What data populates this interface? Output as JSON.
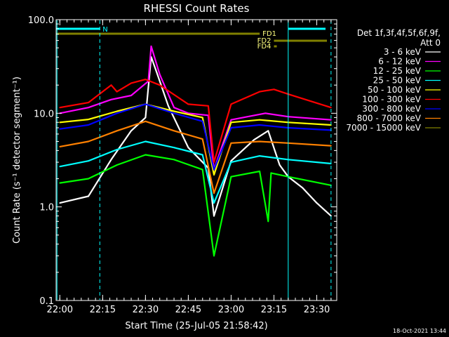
{
  "chart_data": {
    "type": "line",
    "title": "RHESSI Count Rates",
    "xlabel": "Start Time (25-Jul-05 21:58:42)",
    "ylabel": "Count Rate (s⁻¹ detector segment⁻¹)",
    "timestamp": "18-Oct-2021 13:44",
    "y_scale": "log",
    "ylim": [
      0.1,
      100.0
    ],
    "xlim": [
      "21:58:42",
      "23:37:00"
    ],
    "x_ticks": [
      "22:00",
      "22:15",
      "22:30",
      "22:45",
      "23:00",
      "23:15",
      "23:30"
    ],
    "y_ticks": [
      "0.1",
      "1.0",
      "10.0",
      "100.0"
    ],
    "legend_header": [
      "Det 1f,3f,4f,5f,6f,9f,",
      "Att 0"
    ],
    "series": [
      {
        "name": "3 - 6 keV",
        "color": "#ffffff",
        "x": [
          "22:00",
          "22:10",
          "22:18",
          "22:25",
          "22:30",
          "22:32",
          "22:34",
          "22:38",
          "22:45",
          "22:52",
          "22:54",
          "23:00",
          "23:08",
          "23:13",
          "23:17",
          "23:20",
          "23:25",
          "23:30",
          "23:35"
        ],
        "values": [
          1.1,
          1.3,
          3.2,
          6.5,
          9,
          40,
          27,
          12,
          4.3,
          2.6,
          0.8,
          3.1,
          5.2,
          6.5,
          2.8,
          2.1,
          1.6,
          1.1,
          0.8
        ]
      },
      {
        "name": "6 - 12 keV",
        "color": "#ff00ff",
        "x": [
          "22:00",
          "22:10",
          "22:18",
          "22:25",
          "22:31",
          "22:32",
          "22:35",
          "22:40",
          "22:45",
          "22:52",
          "22:54",
          "23:00",
          "23:12",
          "23:20",
          "23:35"
        ],
        "values": [
          10,
          11.5,
          14,
          15.5,
          22,
          52,
          26,
          11.5,
          10,
          9.5,
          2.5,
          8.5,
          10,
          9.2,
          8.5
        ]
      },
      {
        "name": "12 - 25 keV",
        "color": "#00ff00",
        "x": [
          "22:00",
          "22:10",
          "22:20",
          "22:30",
          "22:40",
          "22:50",
          "22:54",
          "23:00",
          "23:10",
          "23:13",
          "23:14",
          "23:20",
          "23:35"
        ],
        "values": [
          1.8,
          2.0,
          2.8,
          3.6,
          3.2,
          2.5,
          0.3,
          2.1,
          2.4,
          0.7,
          2.3,
          2.1,
          1.7
        ]
      },
      {
        "name": "25 - 50 keV",
        "color": "#00ffff",
        "x": [
          "22:00",
          "22:10",
          "22:20",
          "22:30",
          "22:40",
          "22:50",
          "22:54",
          "23:00",
          "23:10",
          "23:20",
          "23:35"
        ],
        "values": [
          2.7,
          3.1,
          4.1,
          5.0,
          4.3,
          3.6,
          1.1,
          3.0,
          3.5,
          3.2,
          2.9
        ]
      },
      {
        "name": "50 - 100 keV",
        "color": "#ffff00",
        "x": [
          "22:00",
          "22:10",
          "22:20",
          "22:30",
          "22:40",
          "22:50",
          "22:54",
          "23:00",
          "23:10",
          "23:20",
          "23:35"
        ],
        "values": [
          8.0,
          8.6,
          10.5,
          12.5,
          10.5,
          9.0,
          2.2,
          8.0,
          8.5,
          8.0,
          7.5
        ]
      },
      {
        "name": "100 - 300 keV",
        "color": "#ff0000",
        "x": [
          "22:00",
          "22:10",
          "22:18",
          "22:20",
          "22:25",
          "22:30",
          "22:35",
          "22:45",
          "22:52",
          "22:54",
          "23:00",
          "23:10",
          "23:15",
          "23:20",
          "23:35"
        ],
        "values": [
          11.5,
          13,
          20,
          17,
          21,
          23,
          20,
          12.5,
          12,
          3.0,
          12.5,
          17,
          18,
          16,
          11.5
        ]
      },
      {
        "name": "300 - 800 keV",
        "color": "#0000ff",
        "x": [
          "22:00",
          "22:10",
          "22:20",
          "22:30",
          "22:40",
          "22:50",
          "22:54",
          "23:00",
          "23:10",
          "23:20",
          "23:35"
        ],
        "values": [
          6.8,
          7.5,
          10.0,
          12.5,
          10.0,
          8.2,
          2.5,
          7.0,
          7.5,
          7.0,
          6.6
        ]
      },
      {
        "name": "800 - 7000 keV",
        "color": "#ff8000",
        "x": [
          "22:00",
          "22:10",
          "22:20",
          "22:30",
          "22:40",
          "22:50",
          "22:54",
          "23:00",
          "23:10",
          "23:20",
          "23:35"
        ],
        "values": [
          4.4,
          5.0,
          6.5,
          8.2,
          6.5,
          5.3,
          1.4,
          4.8,
          5.0,
          4.8,
          4.5
        ]
      },
      {
        "name": "7000 - 15000 keV",
        "color": "#808000",
        "x": [],
        "values": []
      }
    ],
    "attenuator_bar": {
      "label": "N",
      "color": "#00ffff",
      "y": 80,
      "segments": [
        [
          "21:58:42",
          "22:14"
        ],
        [
          "23:20",
          "23:36"
        ]
      ]
    },
    "flag_bars": [
      {
        "label": "FD1",
        "color": "#808000",
        "y": 70,
        "segments": [
          [
            "21:58:42",
            "23:10"
          ]
        ]
      },
      {
        "label": "FD2",
        "color": "#808000",
        "y": 56,
        "segments": [
          [
            "23:15",
            "23:36"
          ]
        ]
      },
      {
        "label": "FD4",
        "color": "#808000",
        "y": 47,
        "segments": [
          [
            "23:15",
            "23:16"
          ]
        ]
      }
    ],
    "vertical_lines": [
      {
        "x": "21:59",
        "color": "#00ffff",
        "style": "solid"
      },
      {
        "x": "22:14",
        "color": "#00ffff",
        "style": "dashed"
      },
      {
        "x": "23:20",
        "color": "#00ffff",
        "style": "solid"
      },
      {
        "x": "23:35",
        "color": "#00ffff",
        "style": "dashed"
      }
    ],
    "grid": false,
    "legend_position": "right"
  }
}
